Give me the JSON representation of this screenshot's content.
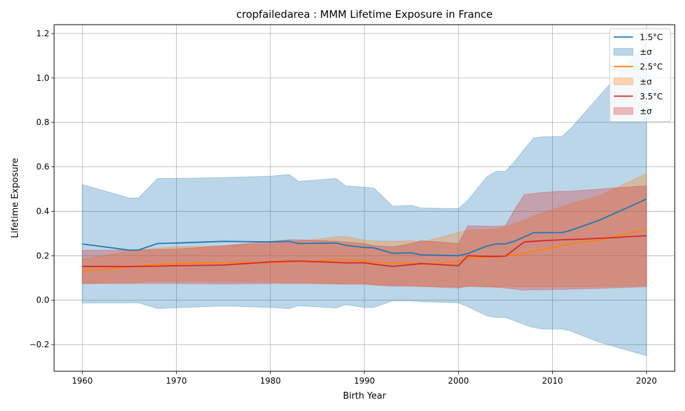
{
  "chart_data": {
    "type": "line",
    "title": "cropfailedarea : MMM Lifetime Exposure in France",
    "xlabel": "Birth Year",
    "ylabel": "Lifetime Exposure",
    "xlim": [
      1957,
      2023
    ],
    "ylim": [
      -0.32,
      1.24
    ],
    "xticks": [
      1960,
      1970,
      1980,
      1990,
      2000,
      2010,
      2020
    ],
    "xtick_labels": [
      "1960",
      "1970",
      "1980",
      "1990",
      "2000",
      "2010",
      "2020"
    ],
    "yticks": [
      -0.2,
      0.0,
      0.2,
      0.4,
      0.6,
      0.8,
      1.0,
      1.2
    ],
    "ytick_labels": [
      "−0.2",
      "0.0",
      "0.2",
      "0.4",
      "0.6",
      "0.8",
      "1.0",
      "1.2"
    ],
    "grid": true,
    "legend_position": "top-right",
    "x": [
      1960,
      1965,
      1966,
      1968,
      1970,
      1975,
      1980,
      1982,
      1983,
      1987,
      1988,
      1990,
      1991,
      1993,
      1995,
      1996,
      2000,
      2001,
      2003,
      2004,
      2005,
      2006,
      2007,
      2008,
      2009,
      2011,
      2012,
      2015,
      2020
    ],
    "series": [
      {
        "name": "1.5°C",
        "band_label": "±σ",
        "color": "#1f77b4",
        "band_color": "#1f77b4",
        "values": [
          0.253,
          0.225,
          0.226,
          0.255,
          0.257,
          0.265,
          0.262,
          0.265,
          0.255,
          0.257,
          0.247,
          0.237,
          0.236,
          0.211,
          0.213,
          0.204,
          0.2,
          0.21,
          0.243,
          0.253,
          0.253,
          0.266,
          0.285,
          0.304,
          0.304,
          0.304,
          0.315,
          0.36,
          0.455
        ],
        "upper": [
          0.52,
          0.46,
          0.46,
          0.548,
          0.548,
          0.552,
          0.558,
          0.566,
          0.535,
          0.548,
          0.515,
          0.508,
          0.505,
          0.423,
          0.427,
          0.415,
          0.412,
          0.45,
          0.555,
          0.58,
          0.58,
          0.625,
          0.68,
          0.73,
          0.735,
          0.737,
          0.775,
          0.92,
          1.16
        ],
        "lower": [
          -0.013,
          -0.012,
          -0.012,
          -0.038,
          -0.034,
          -0.026,
          -0.033,
          -0.038,
          -0.025,
          -0.035,
          -0.02,
          -0.033,
          -0.033,
          -0.003,
          -0.003,
          -0.007,
          -0.012,
          -0.03,
          -0.07,
          -0.078,
          -0.078,
          -0.093,
          -0.11,
          -0.123,
          -0.13,
          -0.13,
          -0.14,
          -0.19,
          -0.25
        ]
      },
      {
        "name": "2.5°C",
        "band_label": "±σ",
        "color": "#ff7f0e",
        "band_color": "#ff7f0e",
        "values": [
          0.13,
          0.15,
          0.155,
          0.16,
          0.165,
          0.17,
          0.168,
          0.172,
          0.175,
          0.18,
          0.182,
          0.178,
          0.17,
          0.168,
          0.165,
          0.16,
          0.175,
          0.19,
          0.195,
          0.195,
          0.2,
          0.205,
          0.21,
          0.22,
          0.228,
          0.245,
          0.255,
          0.27,
          0.32
        ],
        "upper": [
          0.185,
          0.22,
          0.225,
          0.235,
          0.24,
          0.245,
          0.255,
          0.26,
          0.265,
          0.285,
          0.287,
          0.27,
          0.267,
          0.265,
          0.268,
          0.26,
          0.305,
          0.315,
          0.318,
          0.32,
          0.33,
          0.345,
          0.36,
          0.38,
          0.395,
          0.42,
          0.435,
          0.47,
          0.57
        ],
        "lower": [
          0.075,
          0.08,
          0.082,
          0.085,
          0.085,
          0.085,
          0.082,
          0.08,
          0.08,
          0.075,
          0.075,
          0.075,
          0.07,
          0.068,
          0.065,
          0.062,
          0.06,
          0.062,
          0.06,
          0.06,
          0.06,
          0.06,
          0.06,
          0.06,
          0.06,
          0.06,
          0.06,
          0.06,
          0.065
        ]
      },
      {
        "name": "3.5°C",
        "band_label": "±σ",
        "color": "#d62728",
        "band_color": "#d62728",
        "values": [
          0.152,
          0.151,
          0.152,
          0.153,
          0.155,
          0.158,
          0.172,
          0.175,
          0.176,
          0.17,
          0.168,
          0.168,
          0.162,
          0.152,
          0.16,
          0.165,
          0.155,
          0.2,
          0.197,
          0.197,
          0.198,
          0.23,
          0.262,
          0.265,
          0.268,
          0.272,
          0.273,
          0.278,
          0.29
        ],
        "upper": [
          0.225,
          0.225,
          0.225,
          0.228,
          0.23,
          0.245,
          0.265,
          0.272,
          0.272,
          0.265,
          0.262,
          0.255,
          0.245,
          0.24,
          0.255,
          0.268,
          0.255,
          0.335,
          0.333,
          0.333,
          0.335,
          0.41,
          0.475,
          0.48,
          0.485,
          0.49,
          0.49,
          0.5,
          0.515
        ],
        "lower": [
          0.075,
          0.075,
          0.075,
          0.075,
          0.075,
          0.073,
          0.075,
          0.075,
          0.075,
          0.073,
          0.072,
          0.072,
          0.068,
          0.063,
          0.063,
          0.062,
          0.055,
          0.063,
          0.06,
          0.058,
          0.055,
          0.05,
          0.045,
          0.047,
          0.047,
          0.048,
          0.05,
          0.053,
          0.06
        ]
      }
    ]
  }
}
